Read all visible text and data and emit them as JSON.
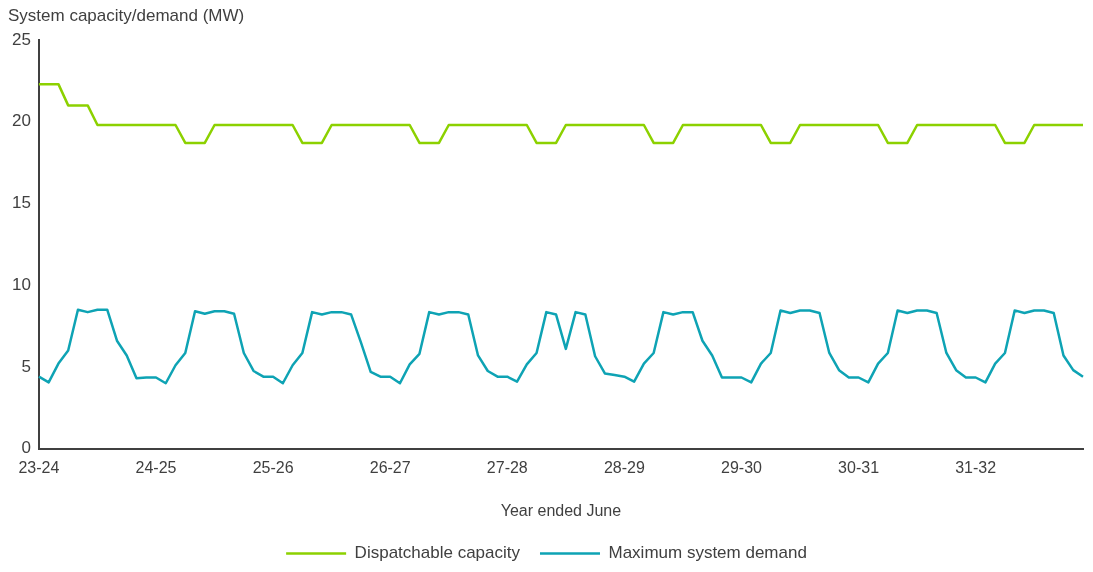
{
  "chart_data": {
    "type": "line",
    "ylabel": "System capacity/demand (MW)",
    "xlabel": "Year ended June",
    "categories": [
      "23-24",
      null,
      null,
      null,
      null,
      null,
      null,
      null,
      null,
      null,
      null,
      null,
      "24-25",
      null,
      null,
      null,
      null,
      null,
      null,
      null,
      null,
      null,
      null,
      null,
      "25-26",
      null,
      null,
      null,
      null,
      null,
      null,
      null,
      null,
      null,
      null,
      null,
      "26-27",
      null,
      null,
      null,
      null,
      null,
      null,
      null,
      null,
      null,
      null,
      null,
      "27-28",
      null,
      null,
      null,
      null,
      null,
      null,
      null,
      null,
      null,
      null,
      null,
      "28-29",
      null,
      null,
      null,
      null,
      null,
      null,
      null,
      null,
      null,
      null,
      null,
      "29-30",
      null,
      null,
      null,
      null,
      null,
      null,
      null,
      null,
      null,
      null,
      null,
      "30-31",
      null,
      null,
      null,
      null,
      null,
      null,
      null,
      null,
      null,
      null,
      null,
      "31-32",
      null,
      null,
      null,
      null,
      null,
      null,
      null,
      null,
      null,
      null,
      null
    ],
    "series": [
      {
        "name": "Dispatchable capacity",
        "color": "#8cd100",
        "values": [
          22.3,
          22.3,
          22.3,
          21,
          21,
          21,
          19.8,
          19.8,
          19.8,
          19.8,
          19.8,
          19.8,
          19.8,
          19.8,
          19.8,
          18.7,
          18.7,
          18.7,
          19.8,
          19.8,
          19.8,
          19.8,
          19.8,
          19.8,
          19.8,
          19.8,
          19.8,
          18.7,
          18.7,
          18.7,
          19.8,
          19.8,
          19.8,
          19.8,
          19.8,
          19.8,
          19.8,
          19.8,
          19.8,
          18.7,
          18.7,
          18.7,
          19.8,
          19.8,
          19.8,
          19.8,
          19.8,
          19.8,
          19.8,
          19.8,
          19.8,
          18.7,
          18.7,
          18.7,
          19.8,
          19.8,
          19.8,
          19.8,
          19.8,
          19.8,
          19.8,
          19.8,
          19.8,
          18.7,
          18.7,
          18.7,
          19.8,
          19.8,
          19.8,
          19.8,
          19.8,
          19.8,
          19.8,
          19.8,
          19.8,
          18.7,
          18.7,
          18.7,
          19.8,
          19.8,
          19.8,
          19.8,
          19.8,
          19.8,
          19.8,
          19.8,
          19.8,
          18.7,
          18.7,
          18.7,
          19.8,
          19.8,
          19.8,
          19.8,
          19.8,
          19.8,
          19.8,
          19.8,
          19.8,
          18.7,
          18.7,
          18.7,
          19.8,
          19.8,
          19.8,
          19.8,
          19.8,
          19.8
        ]
      },
      {
        "name": "Maximum system demand",
        "color": "#0ea3b4",
        "values": [
          4.4,
          4.05,
          5.2,
          6.0,
          8.5,
          8.35,
          8.5,
          8.5,
          6.6,
          5.7,
          4.3,
          4.35,
          4.35,
          4.0,
          5.1,
          5.85,
          8.4,
          8.25,
          8.4,
          8.4,
          8.25,
          5.85,
          4.75,
          4.4,
          4.4,
          4.0,
          5.1,
          5.85,
          8.35,
          8.2,
          8.35,
          8.35,
          8.2,
          6.5,
          4.7,
          4.4,
          4.4,
          4.0,
          5.15,
          5.8,
          8.35,
          8.2,
          8.35,
          8.35,
          8.2,
          5.7,
          4.75,
          4.4,
          4.4,
          4.1,
          5.15,
          5.85,
          8.35,
          8.2,
          6.1,
          8.35,
          8.2,
          5.65,
          4.6,
          4.5,
          4.4,
          4.1,
          5.2,
          5.85,
          8.35,
          8.2,
          8.35,
          8.35,
          6.6,
          5.7,
          4.35,
          4.35,
          4.35,
          4.05,
          5.2,
          5.85,
          8.45,
          8.3,
          8.45,
          8.45,
          8.3,
          5.85,
          4.8,
          4.35,
          4.35,
          4.05,
          5.2,
          5.85,
          8.45,
          8.3,
          8.45,
          8.45,
          8.3,
          5.85,
          4.8,
          4.35,
          4.35,
          4.05,
          5.2,
          5.85,
          8.45,
          8.3,
          8.45,
          8.45,
          8.3,
          5.7,
          4.8,
          4.4
        ]
      }
    ],
    "ylim": [
      0,
      25
    ],
    "yticks": [
      0,
      5,
      10,
      15,
      20,
      25
    ],
    "grid": false,
    "legend": "bottom",
    "marker": "none",
    "line_style": "solid"
  }
}
